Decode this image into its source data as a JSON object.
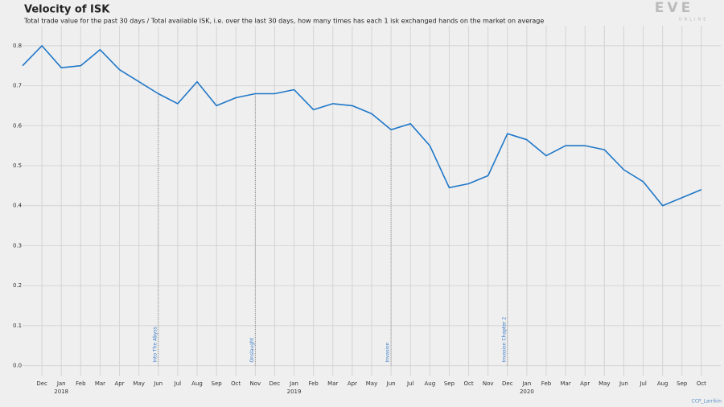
{
  "chart_data": {
    "type": "line",
    "title": "Velocity of ISK",
    "subtitle": "Total trade value for the past 30 days / Total available ISK, i.e. over the last 30 days, how many times has each 1 isk exchanged hands on the market on average",
    "logo": {
      "name": "EVE",
      "tagline": "ONLINE"
    },
    "credit": "CCP_Larrikin",
    "x": [
      "2017-11",
      "2017-12",
      "2018-01",
      "2018-02",
      "2018-03",
      "2018-04",
      "2018-05",
      "2018-06",
      "2018-07",
      "2018-08",
      "2018-09",
      "2018-10",
      "2018-11",
      "2018-12",
      "2019-01",
      "2019-02",
      "2019-03",
      "2019-04",
      "2019-05",
      "2019-06",
      "2019-07",
      "2019-08",
      "2019-09",
      "2019-10",
      "2019-11",
      "2019-12",
      "2020-01",
      "2020-02",
      "2020-03",
      "2020-04",
      "2020-05",
      "2020-06",
      "2020-07",
      "2020-08",
      "2020-09",
      "2020-10"
    ],
    "series": [
      {
        "name": "Velocity of ISK",
        "color": "#1f77c8",
        "values": [
          0.75,
          0.8,
          0.745,
          0.75,
          0.79,
          0.74,
          0.71,
          0.68,
          0.655,
          0.71,
          0.65,
          0.67,
          0.68,
          0.68,
          0.69,
          0.64,
          0.655,
          0.65,
          0.63,
          0.59,
          0.605,
          0.55,
          0.445,
          0.455,
          0.475,
          0.58,
          0.565,
          0.525,
          0.55,
          0.55,
          0.54,
          0.49,
          0.46,
          0.4,
          0.42,
          0.44
        ]
      }
    ],
    "xlim": [
      "2017-11",
      "2020-11"
    ],
    "xticks": [
      {
        "value": "2017-12",
        "label": "Dec"
      },
      {
        "value": "2018-01",
        "label": "Jan"
      },
      {
        "value": "2018-02",
        "label": "Feb"
      },
      {
        "value": "2018-03",
        "label": "Mar"
      },
      {
        "value": "2018-04",
        "label": "Apr"
      },
      {
        "value": "2018-05",
        "label": "May"
      },
      {
        "value": "2018-06",
        "label": "Jun"
      },
      {
        "value": "2018-07",
        "label": "Jul"
      },
      {
        "value": "2018-08",
        "label": "Aug"
      },
      {
        "value": "2018-09",
        "label": "Sep"
      },
      {
        "value": "2018-10",
        "label": "Oct"
      },
      {
        "value": "2018-11",
        "label": "Nov"
      },
      {
        "value": "2018-12",
        "label": "Dec"
      },
      {
        "value": "2019-01",
        "label": "Jan"
      },
      {
        "value": "2019-02",
        "label": "Feb"
      },
      {
        "value": "2019-03",
        "label": "Mar"
      },
      {
        "value": "2019-04",
        "label": "Apr"
      },
      {
        "value": "2019-05",
        "label": "May"
      },
      {
        "value": "2019-06",
        "label": "Jun"
      },
      {
        "value": "2019-07",
        "label": "Jul"
      },
      {
        "value": "2019-08",
        "label": "Aug"
      },
      {
        "value": "2019-09",
        "label": "Sep"
      },
      {
        "value": "2019-10",
        "label": "Oct"
      },
      {
        "value": "2019-11",
        "label": "Nov"
      },
      {
        "value": "2019-12",
        "label": "Dec"
      },
      {
        "value": "2020-01",
        "label": "Jan"
      },
      {
        "value": "2020-02",
        "label": "Feb"
      },
      {
        "value": "2020-03",
        "label": "Mar"
      },
      {
        "value": "2020-04",
        "label": "Apr"
      },
      {
        "value": "2020-05",
        "label": "May"
      },
      {
        "value": "2020-06",
        "label": "Jun"
      },
      {
        "value": "2020-07",
        "label": "Jul"
      },
      {
        "value": "2020-08",
        "label": "Aug"
      },
      {
        "value": "2020-09",
        "label": "Sep"
      },
      {
        "value": "2020-10",
        "label": "Oct"
      }
    ],
    "year_ticks": [
      {
        "value": "2018-01",
        "label": "2018"
      },
      {
        "value": "2019-01",
        "label": "2019"
      },
      {
        "value": "2020-01",
        "label": "2020"
      }
    ],
    "ylim": [
      -0.025,
      0.85
    ],
    "yticks": [
      {
        "value": 0,
        "label": "0.0"
      },
      0.1,
      0.2,
      0.3,
      0.4,
      0.5,
      0.6,
      0.7,
      0.8
    ],
    "grid": true,
    "events": [
      {
        "x": "2018-06",
        "label": "Into The Abyss"
      },
      {
        "x": "2018-11",
        "label": "Onslaught"
      },
      {
        "x": "2019-06",
        "label": "Invasion"
      },
      {
        "x": "2019-12",
        "label": "Invasion Chapter 2"
      }
    ]
  }
}
